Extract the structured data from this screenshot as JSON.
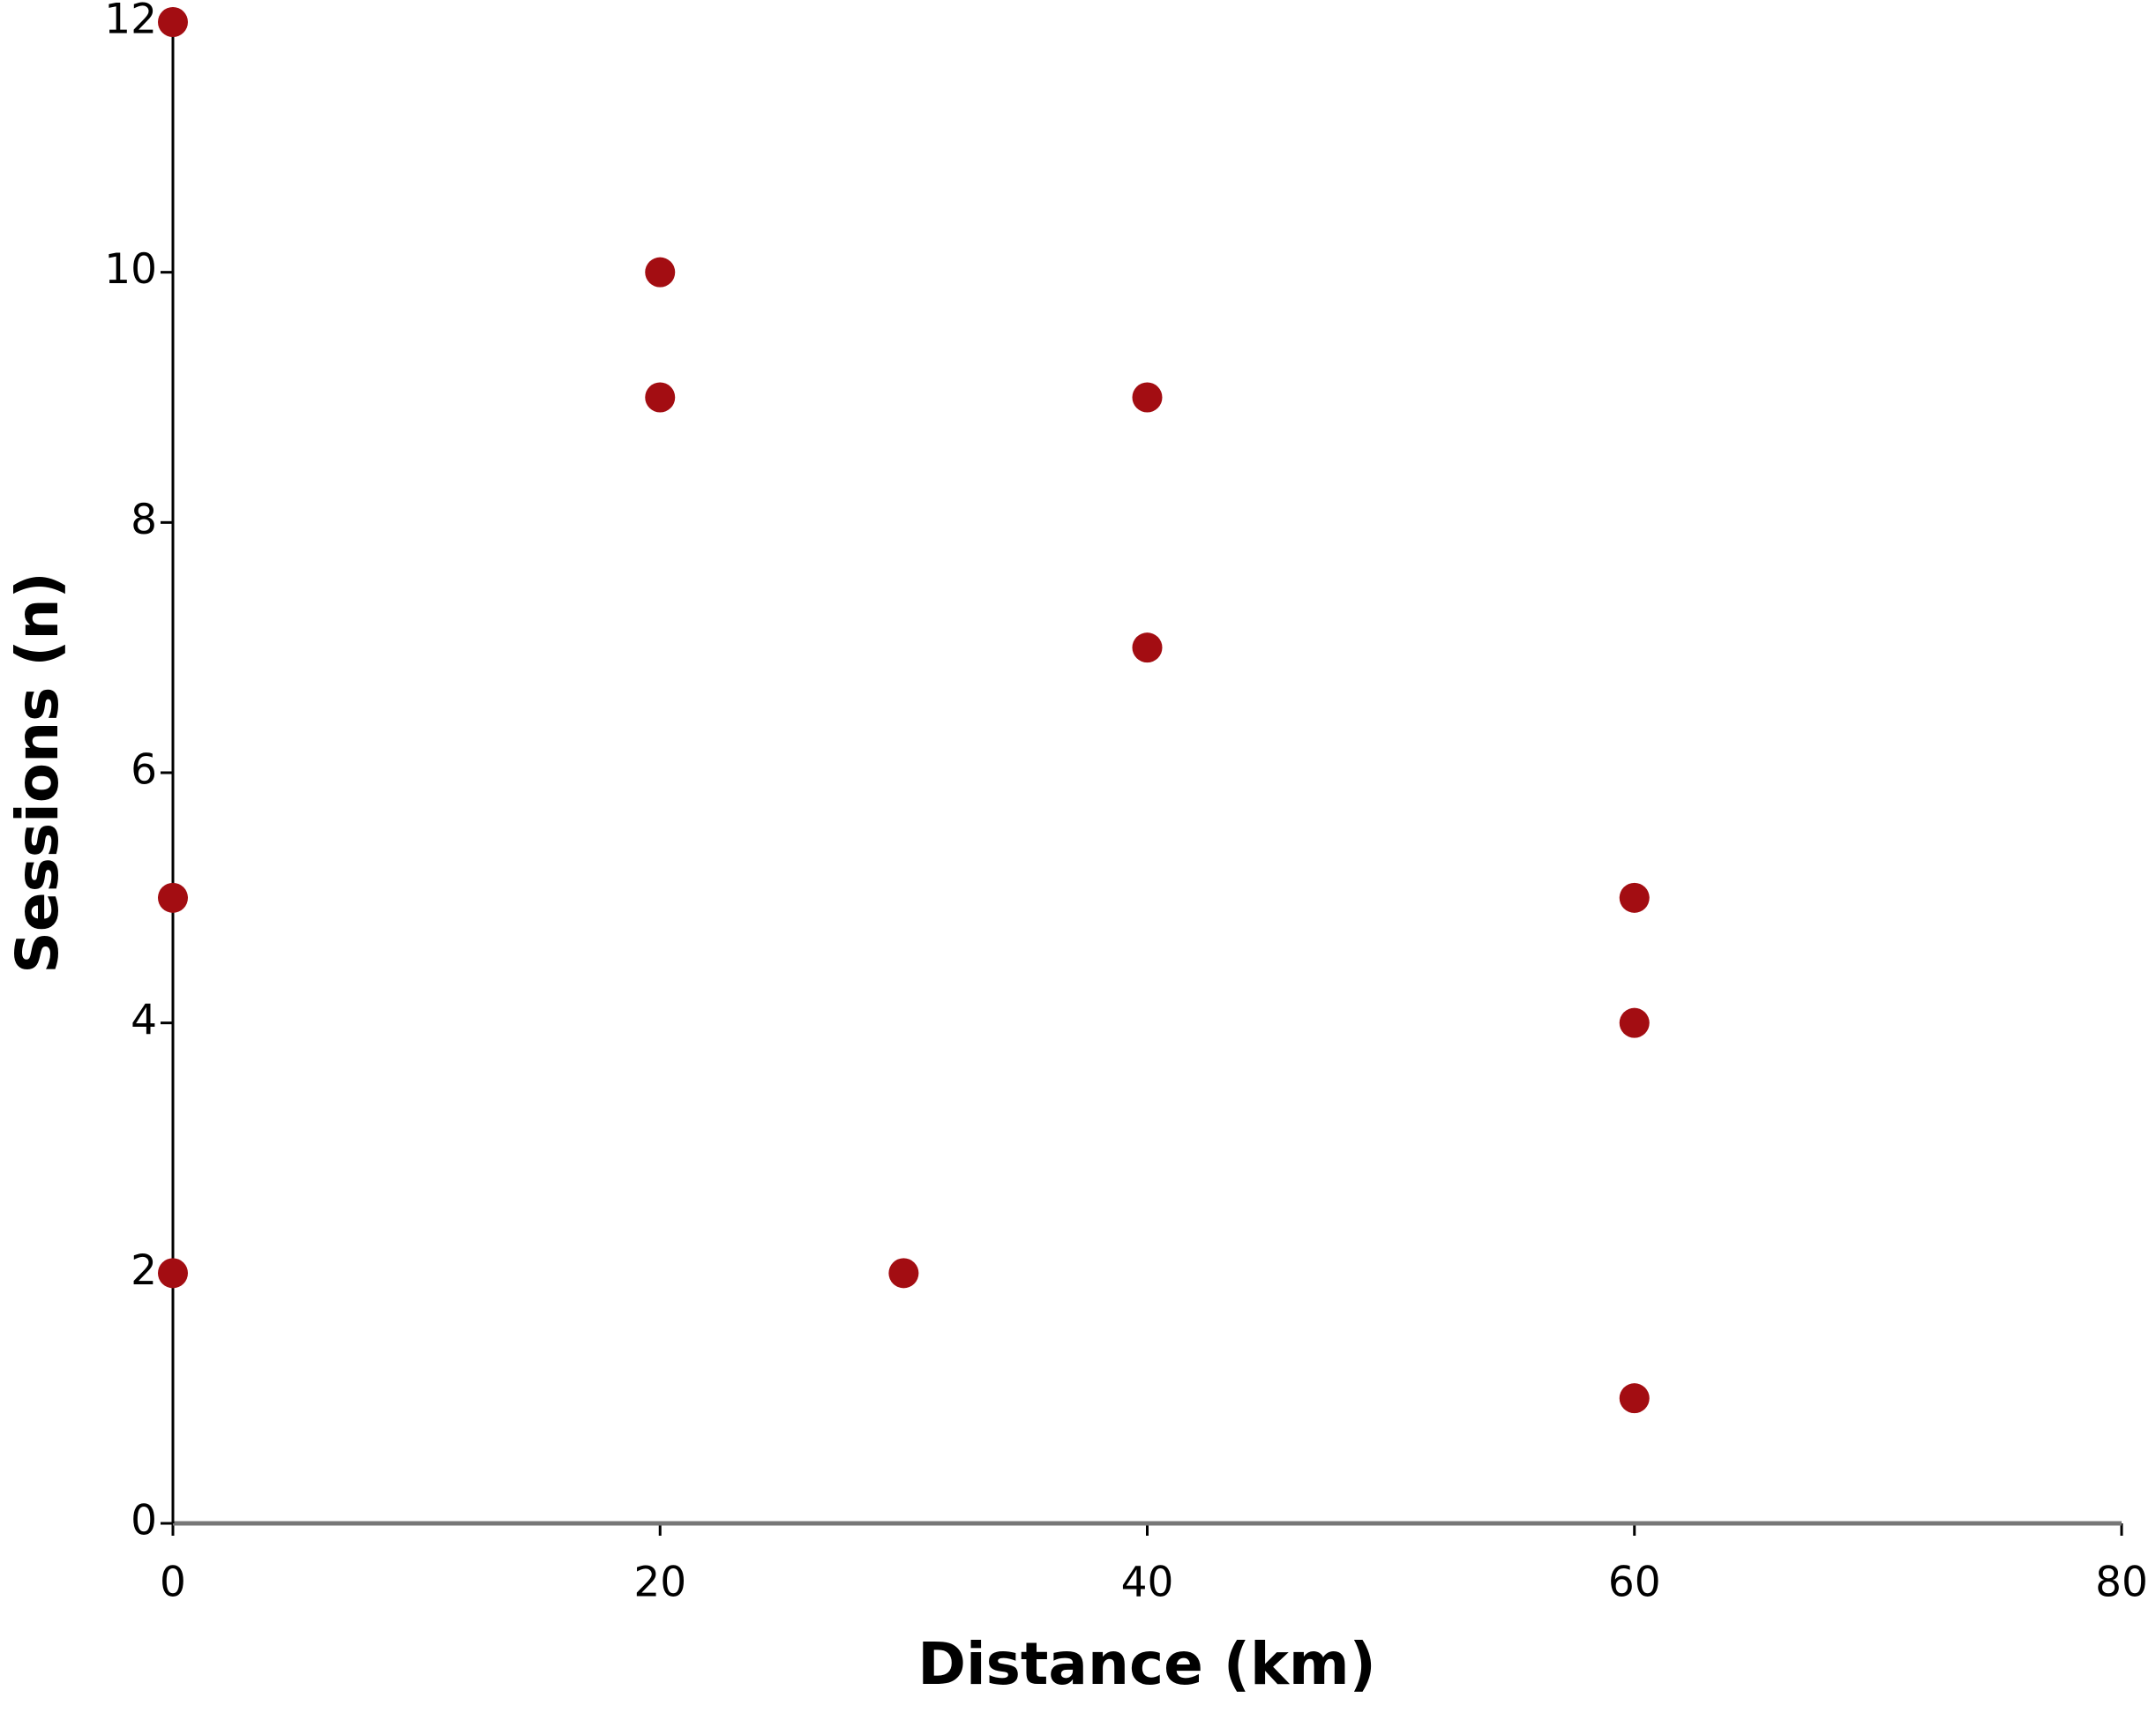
{
  "chart_data": {
    "type": "scatter",
    "x_label": "Distance (km)",
    "y_label": "Sessions (n)",
    "x": [
      0,
      20,
      20,
      40,
      40,
      0,
      60,
      60,
      0,
      30,
      60
    ],
    "values": [
      12,
      10,
      9,
      9,
      7,
      5,
      5,
      4,
      2,
      2,
      1
    ],
    "color": "#a30d12",
    "xlim": [
      0,
      80
    ],
    "xticks": [
      0,
      20,
      40,
      60,
      80
    ],
    "ylim": [
      0,
      12
    ],
    "yticks": [
      0,
      2,
      4,
      6,
      8,
      10,
      12
    ],
    "grid": false
  }
}
